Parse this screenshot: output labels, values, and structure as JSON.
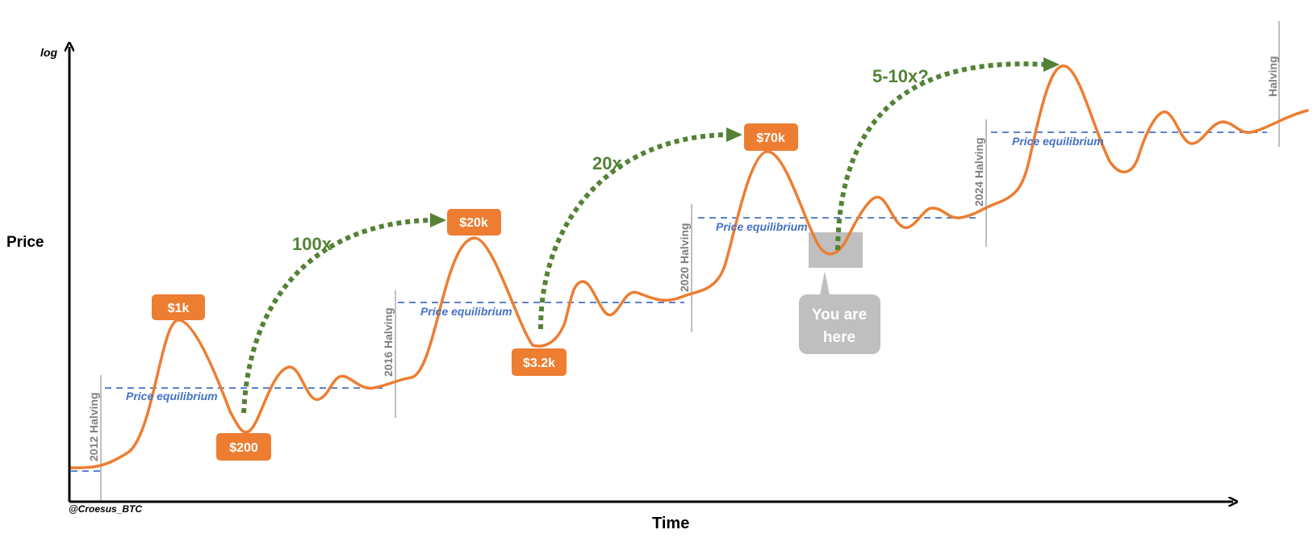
{
  "axes": {
    "y_label": "Price",
    "x_label": "Time",
    "y_scale_label": "log",
    "credit": "@Croesus_BTC"
  },
  "halvings": [
    {
      "label": "2012 Halving"
    },
    {
      "label": "2016 Halving"
    },
    {
      "label": "2020 Halving"
    },
    {
      "label": "2024 Halving"
    },
    {
      "label": "Halving"
    }
  ],
  "equilibria": [
    {
      "label": "Price equilibrium"
    },
    {
      "label": "Price equilibrium"
    },
    {
      "label": "Price equilibrium"
    },
    {
      "label": "Price equilibrium"
    }
  ],
  "price_labels": [
    {
      "label": "$1k"
    },
    {
      "label": "$200"
    },
    {
      "label": "$20k"
    },
    {
      "label": "$3.2k"
    },
    {
      "label": "$70k"
    }
  ],
  "multipliers": [
    {
      "label": "100x"
    },
    {
      "label": "20x"
    },
    {
      "label": "5-10x?"
    }
  ],
  "callout": {
    "line1": "You are",
    "line2": "here"
  },
  "colors": {
    "curve": "#ED7D31",
    "price_box": "#ED7D31",
    "arrow": "#548235",
    "equilibrium": "#4472C4",
    "halving_line": "#7F7F7F",
    "callout": "#BFBFBF"
  }
}
